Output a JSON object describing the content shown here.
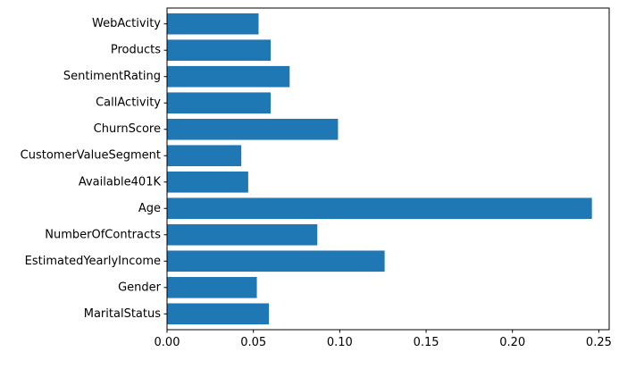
{
  "chart_data": {
    "type": "bar",
    "orientation": "horizontal",
    "categories": [
      "MaritalStatus",
      "Gender",
      "EstimatedYearlyIncome",
      "NumberOfContracts",
      "Age",
      "Available401K",
      "CustomerValueSegment",
      "ChurnScore",
      "CallActivity",
      "SentimentRating",
      "Products",
      "WebActivity"
    ],
    "values": [
      0.059,
      0.052,
      0.126,
      0.087,
      0.246,
      0.047,
      0.043,
      0.099,
      0.06,
      0.071,
      0.06,
      0.053
    ],
    "xlim": [
      0,
      0.256
    ],
    "xticks": [
      {
        "value": 0.0,
        "label": "0.00"
      },
      {
        "value": 0.05,
        "label": "0.05"
      },
      {
        "value": 0.1,
        "label": "0.10"
      },
      {
        "value": 0.15,
        "label": "0.15"
      },
      {
        "value": 0.2,
        "label": "0.20"
      },
      {
        "value": 0.25,
        "label": "0.25"
      }
    ],
    "title": "",
    "xlabel": "",
    "ylabel": "",
    "grid": false,
    "bar_color": "#1f77b4"
  }
}
